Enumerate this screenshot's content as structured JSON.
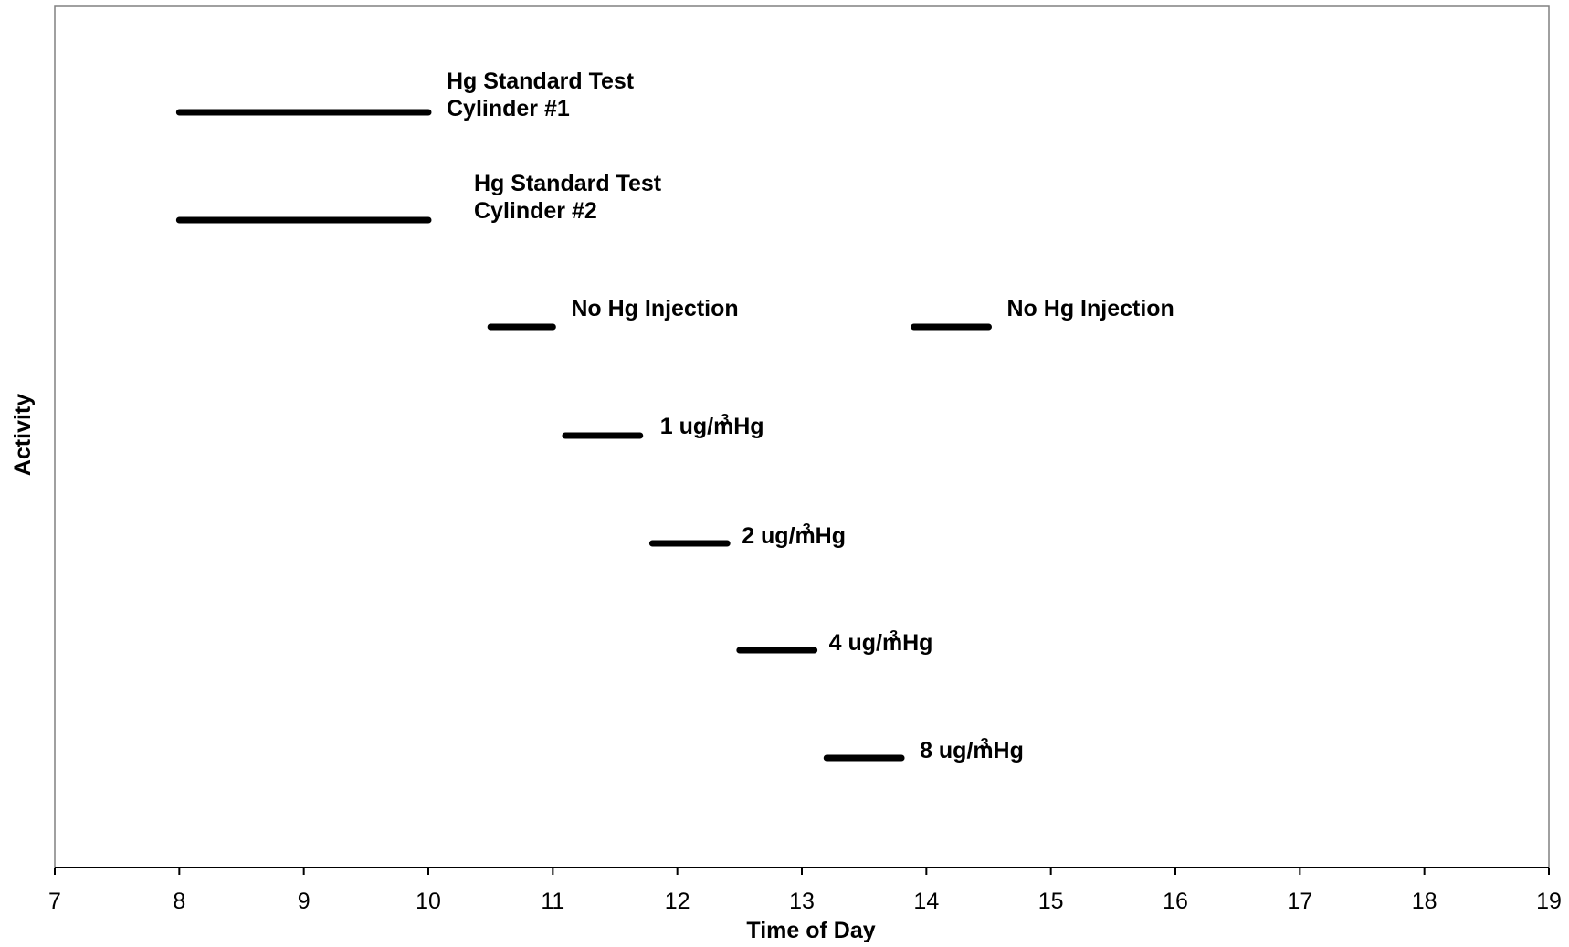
{
  "chart_data": {
    "type": "gantt",
    "xlabel": "Time of Day",
    "ylabel": "Activity",
    "xlim": [
      7,
      19
    ],
    "xticks": [
      7,
      8,
      9,
      10,
      11,
      12,
      13,
      14,
      15,
      16,
      17,
      18,
      19
    ],
    "grid": false,
    "activities": [
      {
        "label_lines": [
          "Hg Standard Test",
          "Cylinder #1"
        ],
        "start": 8.0,
        "end": 10.0,
        "row": 1
      },
      {
        "label_lines": [
          "Hg Standard Test",
          "Cylinder #2"
        ],
        "start": 8.0,
        "end": 10.0,
        "row": 2
      },
      {
        "label_lines": [
          "No Hg Injection"
        ],
        "start": 10.5,
        "end": 11.0,
        "row": 3
      },
      {
        "label_lines": [
          "No Hg Injection"
        ],
        "start": 13.9,
        "end": 14.5,
        "row": 3
      },
      {
        "label_lines": [
          "1 ug/m",
          "3",
          "Hg"
        ],
        "start": 11.1,
        "end": 11.7,
        "row": 4,
        "superscript": true
      },
      {
        "label_lines": [
          "2 ug/m",
          "3",
          "Hg"
        ],
        "start": 11.8,
        "end": 12.4,
        "row": 5,
        "superscript": true
      },
      {
        "label_lines": [
          "4 ug/m",
          "3",
          "Hg"
        ],
        "start": 12.5,
        "end": 13.1,
        "row": 6,
        "superscript": true
      },
      {
        "label_lines": [
          "8 ug/m",
          "3",
          "Hg"
        ],
        "start": 13.2,
        "end": 13.8,
        "row": 7,
        "superscript": true
      }
    ],
    "colors": {
      "bar": "#000000",
      "axis": "#000000",
      "frame": "#808080"
    }
  }
}
